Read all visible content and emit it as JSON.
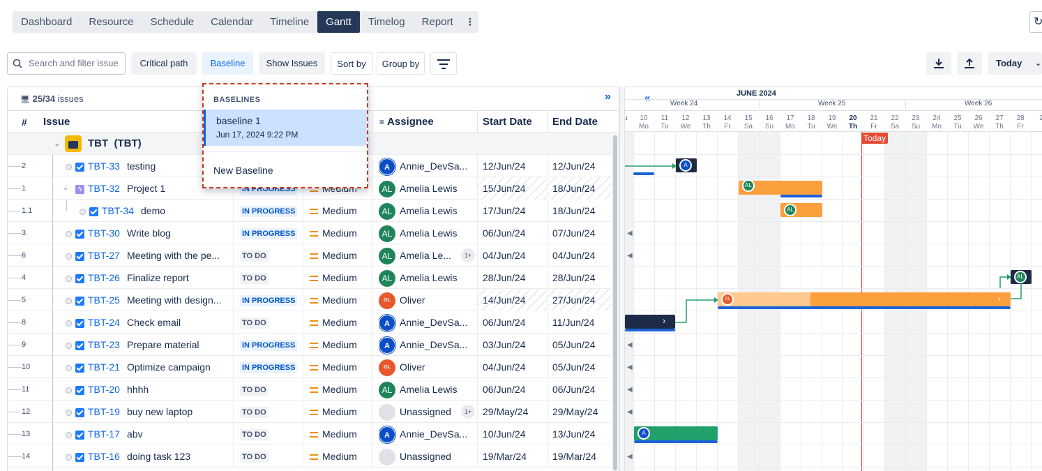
{
  "nav": {
    "tabs": [
      "Dashboard",
      "Resource",
      "Schedule",
      "Calendar",
      "Timeline",
      "Gantt",
      "Timelog",
      "Report"
    ],
    "active": "Gantt"
  },
  "toolbar": {
    "search_placeholder": "Search and filter issue",
    "critical_path": "Critical path",
    "baseline": "Baseline",
    "show_issues": "Show Issues",
    "sort_by": "Sort by",
    "group_by": "Group by",
    "today": "Today"
  },
  "grid": {
    "issue_count": "25/34",
    "issues_word": "issues",
    "columns": {
      "num": "#",
      "issue": "Issue",
      "assignee": "Assignee",
      "start": "Start Date",
      "end": "End Date"
    },
    "group": {
      "label": "TBT  (TBT)"
    },
    "rows": [
      {
        "num": "2",
        "key": "TBT-33",
        "summary": "testing",
        "status": "",
        "priority": "",
        "assignee": "Annie_DevSa...",
        "avatar": "A",
        "start": "12/Jun/24",
        "end": "12/Jun/24"
      },
      {
        "num": "1",
        "key": "TBT-32",
        "summary": "Project 1",
        "status": "IN PROGRESS",
        "priority": "Medium",
        "assignee": "Amelia Lewis",
        "avatar": "AL",
        "start": "15/Jun/24",
        "end": "18/Jun/24"
      },
      {
        "num": "1.1",
        "key": "TBT-34",
        "summary": "demo",
        "status": "IN PROGRESS",
        "priority": "Medium",
        "assignee": "Amelia Lewis",
        "avatar": "AL",
        "start": "17/Jun/24",
        "end": "18/Jun/24"
      },
      {
        "num": "3",
        "key": "TBT-30",
        "summary": "Write blog",
        "status": "IN PROGRESS",
        "priority": "Medium",
        "assignee": "Amelia Lewis",
        "avatar": "AL",
        "start": "06/Jun/24",
        "end": "07/Jun/24"
      },
      {
        "num": "6",
        "key": "TBT-27",
        "summary": "Meeting with the pe...",
        "status": "TO DO",
        "priority": "Medium",
        "assignee": "Amelia Le...",
        "avatar": "AL",
        "extra": "1+",
        "start": "04/Jun/24",
        "end": "04/Jun/24"
      },
      {
        "num": "4",
        "key": "TBT-26",
        "summary": "Finalize report",
        "status": "TO DO",
        "priority": "Medium",
        "assignee": "Amelia Lewis",
        "avatar": "AL",
        "start": "28/Jun/24",
        "end": "28/Jun/24"
      },
      {
        "num": "5",
        "key": "TBT-25",
        "summary": "Meeting with design...",
        "status": "IN PROGRESS",
        "priority": "Medium",
        "assignee": "Oliver",
        "avatar": "OL",
        "start": "14/Jun/24",
        "end": "27/Jun/24"
      },
      {
        "num": "8",
        "key": "TBT-24",
        "summary": "Check email",
        "status": "TO DO",
        "priority": "Medium",
        "assignee": "Annie_DevSa...",
        "avatar": "A",
        "start": "06/Jun/24",
        "end": "11/Jun/24"
      },
      {
        "num": "9",
        "key": "TBT-23",
        "summary": "Prepare material",
        "status": "IN PROGRESS",
        "priority": "Medium",
        "assignee": "Annie_DevSa...",
        "avatar": "A",
        "start": "03/Jun/24",
        "end": "05/Jun/24"
      },
      {
        "num": "10",
        "key": "TBT-21",
        "summary": "Optimize campaign",
        "status": "IN PROGRESS",
        "priority": "Medium",
        "assignee": "Oliver",
        "avatar": "OL",
        "start": "04/Jun/24",
        "end": "05/Jun/24"
      },
      {
        "num": "11",
        "key": "TBT-20",
        "summary": "hhhh",
        "status": "TO DO",
        "priority": "Medium",
        "assignee": "Amelia Lewis",
        "avatar": "AL",
        "start": "06/Jun/24",
        "end": "06/Jun/24"
      },
      {
        "num": "12",
        "key": "TBT-19",
        "summary": "buy new laptop",
        "status": "TO DO",
        "priority": "Medium",
        "assignee": "Unassigned",
        "avatar": "",
        "extra": "1+",
        "start": "29/May/24",
        "end": "29/May/24"
      },
      {
        "num": "13",
        "key": "TBT-17",
        "summary": "abv",
        "status": "TO DO",
        "priority": "Medium",
        "assignee": "Annie_DevSa...",
        "avatar": "A",
        "start": "10/Jun/24",
        "end": "13/Jun/24"
      },
      {
        "num": "14",
        "key": "TBT-16",
        "summary": "doing task 123",
        "status": "TO DO",
        "priority": "Medium",
        "assignee": "Unassigned",
        "avatar": "",
        "start": "19/Mar/24",
        "end": "19/Mar/24"
      }
    ]
  },
  "baseline_menu": {
    "heading": "BASELINES",
    "items": [
      {
        "name": "baseline 1",
        "date": "Jun 17, 2024 9:22 PM"
      }
    ],
    "new_label": "New Baseline"
  },
  "gantt": {
    "month": "JUNE 2024",
    "weeks": [
      "Week 24",
      "Week 25",
      "Week 26"
    ],
    "first_day_partial": "u",
    "days": [
      {
        "d": "10",
        "w": "Mo"
      },
      {
        "d": "11",
        "w": "Tu"
      },
      {
        "d": "12",
        "w": "We"
      },
      {
        "d": "13",
        "w": "Th"
      },
      {
        "d": "14",
        "w": "Fr"
      },
      {
        "d": "15",
        "w": "Sa"
      },
      {
        "d": "16",
        "w": "Su"
      },
      {
        "d": "17",
        "w": "Mo"
      },
      {
        "d": "18",
        "w": "Tu"
      },
      {
        "d": "19",
        "w": "We"
      },
      {
        "d": "20",
        "w": "Th"
      },
      {
        "d": "21",
        "w": "Fr"
      },
      {
        "d": "22",
        "w": "Sa"
      },
      {
        "d": "23",
        "w": "Su"
      },
      {
        "d": "24",
        "w": "Mo"
      },
      {
        "d": "25",
        "w": "Tu"
      },
      {
        "d": "26",
        "w": "We"
      },
      {
        "d": "27",
        "w": "Th"
      },
      {
        "d": "28",
        "w": "Fr"
      },
      {
        "d": "2",
        "w": ""
      }
    ],
    "today_label": "Today",
    "colors": {
      "today": "#e34935",
      "orange": "#fca03e",
      "green": "#22a06b",
      "navy": "#1d2b46",
      "baseline": "#1d63d8"
    }
  }
}
